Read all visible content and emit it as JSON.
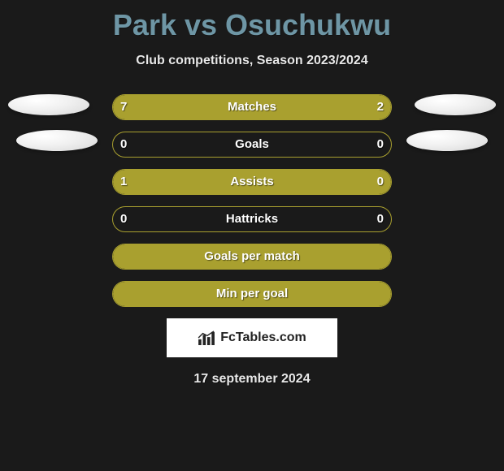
{
  "title": "Park vs Osuchukwu",
  "subtitle": "Club competitions, Season 2023/2024",
  "date": "17 september 2024",
  "logo_text": "FcTables.com",
  "colors": {
    "bar_left": "#a9a02f",
    "bar_right": "#a9a02f",
    "bar_full": "#a9a02f",
    "border": "#a9a02f",
    "background": "#1a1a1a",
    "title": "#6e96a5",
    "text": "#f0f0f0"
  },
  "rows": [
    {
      "label": "Matches",
      "left": "7",
      "right": "2",
      "left_pct": 75,
      "right_pct": 25,
      "show_vals": true
    },
    {
      "label": "Goals",
      "left": "0",
      "right": "0",
      "left_pct": 0,
      "right_pct": 0,
      "show_vals": true
    },
    {
      "label": "Assists",
      "left": "1",
      "right": "0",
      "left_pct": 75,
      "right_pct": 25,
      "show_vals": true
    },
    {
      "label": "Hattricks",
      "left": "0",
      "right": "0",
      "left_pct": 0,
      "right_pct": 0,
      "show_vals": true
    },
    {
      "label": "Goals per match",
      "left": "",
      "right": "",
      "left_pct": 100,
      "right_pct": 0,
      "show_vals": false,
      "full": true
    },
    {
      "label": "Min per goal",
      "left": "",
      "right": "",
      "left_pct": 100,
      "right_pct": 0,
      "show_vals": false,
      "full": true
    }
  ]
}
